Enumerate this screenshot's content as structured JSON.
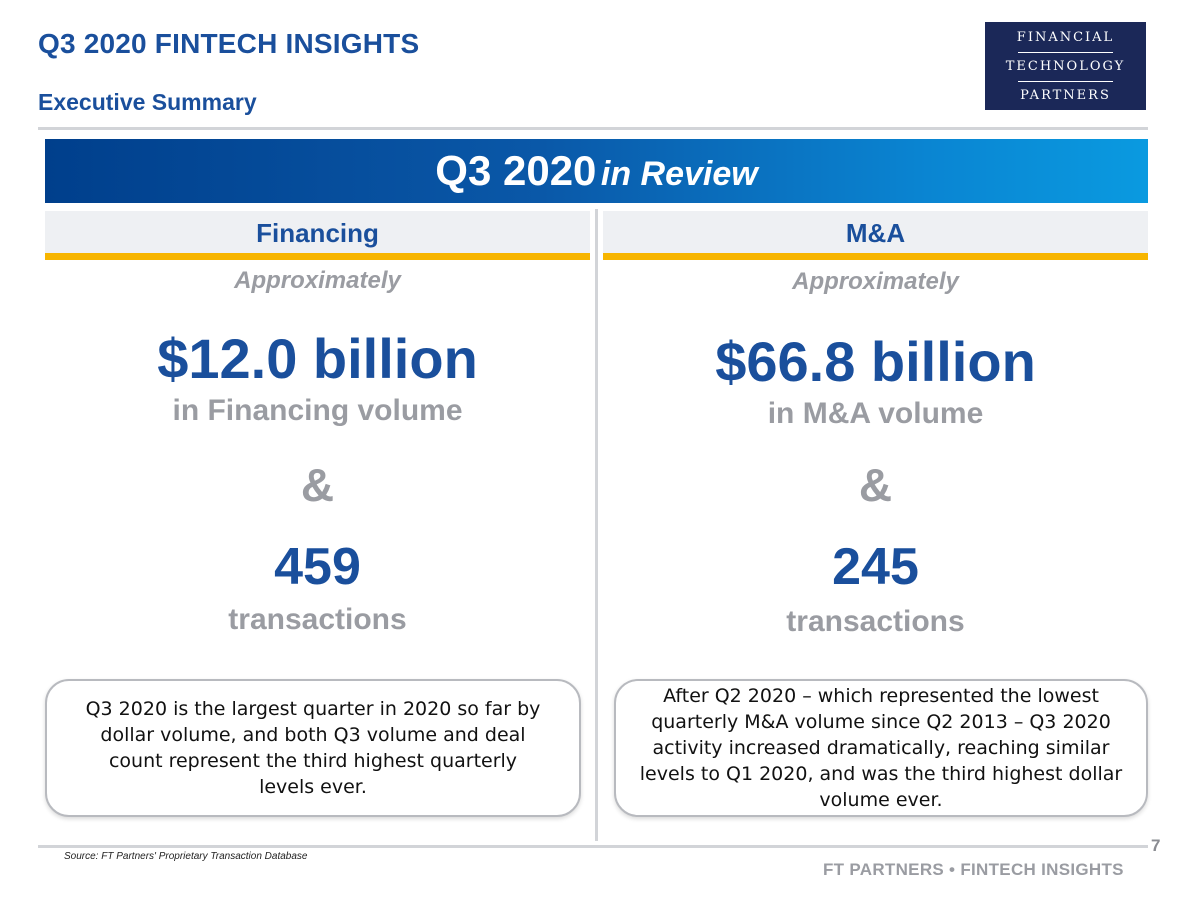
{
  "header": {
    "title": "Q3 2020 FINTECH INSIGHTS",
    "subtitle": "Executive Summary"
  },
  "logo": {
    "line1": "FINANCIAL",
    "line2": "TECHNOLOGY",
    "line3": "PARTNERS"
  },
  "banner": {
    "bold": "Q3 2020",
    "italic": "in Review"
  },
  "financing": {
    "heading": "Financing",
    "approx": "Approximately",
    "volume": "$12.0 billion",
    "volume_label": "in Financing volume",
    "amp": "&",
    "count": "459",
    "count_label": "transactions",
    "callout": "Q3 2020 is the largest quarter in 2020 so far by dollar volume, and both Q3 volume and deal count represent the third highest quarterly levels ever."
  },
  "ma": {
    "heading": "M&A",
    "approx": "Approximately",
    "volume": "$66.8 billion",
    "volume_label": "in M&A volume",
    "amp": "&",
    "count": "245",
    "count_label": "transactions",
    "callout": "After Q2 2020 – which represented the lowest quarterly M&A volume since Q2 2013 – Q3 2020 activity increased dramatically, reaching similar levels to Q1 2020, and was the third highest dollar volume ever."
  },
  "footer": {
    "page_number": "7",
    "source": "Source: FT Partners' Proprietary Transaction Database",
    "brand": "FT PARTNERS • FINTECH INSIGHTS"
  }
}
